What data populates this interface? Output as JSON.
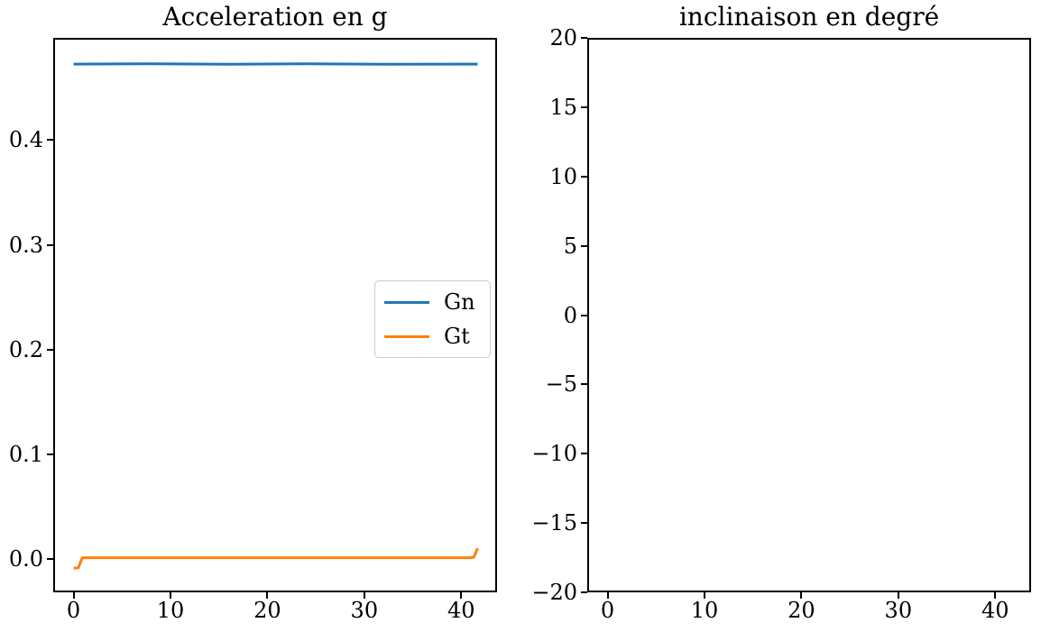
{
  "figure": {
    "background": "#ffffff",
    "text_color": "#000000",
    "spine_color": "#000000"
  },
  "chart_data": [
    {
      "type": "line",
      "title": "Acceleration en g",
      "xlabel": "",
      "ylabel": "",
      "xlim": [
        -2.1,
        43.7
      ],
      "ylim": [
        -0.0315,
        0.4975
      ],
      "xticks": [
        0,
        10,
        20,
        30,
        40
      ],
      "xtick_labels": [
        "0",
        "10",
        "20",
        "30",
        "40"
      ],
      "yticks": [
        0.0,
        0.1,
        0.2,
        0.3,
        0.4
      ],
      "ytick_labels": [
        "0.0",
        "0.1",
        "0.2",
        "0.3",
        "0.4"
      ],
      "grid": false,
      "legend_position": "center-right",
      "series": [
        {
          "name": "Gn",
          "color": "#1f77b4",
          "points": [
            [
              0,
              0.4725
            ],
            [
              8,
              0.4728
            ],
            [
              16,
              0.4723
            ],
            [
              24,
              0.4727
            ],
            [
              32,
              0.4723
            ],
            [
              41.7,
              0.4725
            ]
          ]
        },
        {
          "name": "Gt",
          "color": "#ff7f0e",
          "points": [
            [
              0,
              -0.0085
            ],
            [
              0.5,
              -0.008
            ],
            [
              0.9,
              0.0015
            ],
            [
              40.9,
              0.0015
            ],
            [
              41.3,
              0.002
            ],
            [
              41.7,
              0.0105
            ]
          ]
        }
      ],
      "legend": {
        "entries": [
          {
            "label": "Gn",
            "color": "#1f77b4"
          },
          {
            "label": "Gt",
            "color": "#ff7f0e"
          }
        ]
      }
    },
    {
      "type": "line",
      "title": "inclinaison en degré",
      "xlabel": "",
      "ylabel": "",
      "xlim": [
        -2.1,
        43.7
      ],
      "ylim": [
        -20,
        20
      ],
      "xticks": [
        0,
        10,
        20,
        30,
        40
      ],
      "xtick_labels": [
        "0",
        "10",
        "20",
        "30",
        "40"
      ],
      "yticks": [
        20,
        15,
        10,
        5,
        0,
        -5,
        -10,
        -15,
        -20
      ],
      "ytick_labels": [
        "20",
        "15",
        "10",
        "5",
        "0",
        "−5",
        "−10",
        "−15",
        "−20"
      ],
      "grid": false,
      "series": []
    }
  ]
}
